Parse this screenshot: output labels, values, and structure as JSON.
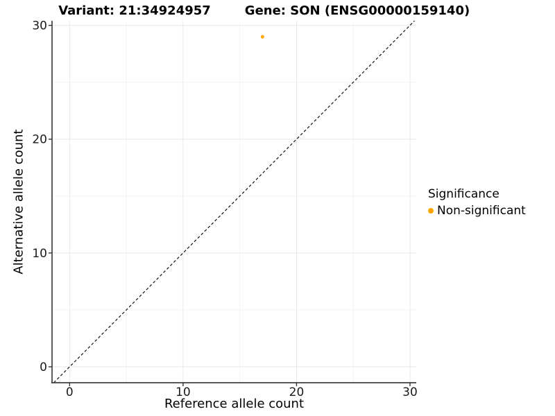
{
  "chart_data": {
    "type": "scatter",
    "titles": {
      "variant": "Variant: 21:34924957",
      "gene": "Gene: SON (ENSG00000159140)"
    },
    "xlabel": "Reference allele count",
    "ylabel": "Alternative allele count",
    "xlim": [
      -1.55,
      30.55
    ],
    "ylim": [
      -1.4,
      30.4
    ],
    "xticks": [
      0,
      10,
      20,
      30
    ],
    "yticks": [
      0,
      10,
      20,
      30
    ],
    "minor_xticks": [
      5,
      15,
      25
    ],
    "minor_yticks": [
      5,
      15,
      25
    ],
    "grid": true,
    "series": [
      {
        "name": "Non-significant",
        "color": "#FFA500",
        "points": [
          {
            "x": 17,
            "y": 29
          }
        ]
      }
    ],
    "reference_line": {
      "type": "identity",
      "slope": 1,
      "intercept": 0,
      "style": "dashed",
      "color": "#111111"
    },
    "legend": {
      "title": "Significance",
      "position": "right",
      "items": [
        {
          "label": "Non-significant",
          "color": "#FFA500",
          "marker": "circle"
        }
      ]
    },
    "colors": {
      "grid_major": "#E8E8E8",
      "grid_minor": "#F3F3F3",
      "axis_line": "#404040",
      "tick_mark": "#333333",
      "tick_label": "#1a1a1a",
      "background": "#FFFFFF"
    }
  }
}
